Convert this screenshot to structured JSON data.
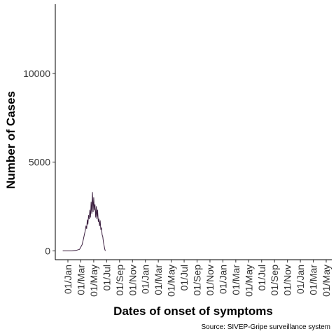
{
  "chart_data": {
    "type": "line",
    "title": "",
    "xlabel": "Dates of onset of symptoms",
    "ylabel": "Number of Cases",
    "caption": "Source: SIVEP-Gripe surveillance system",
    "ylim": [
      -500,
      13900
    ],
    "y_ticks": [
      0,
      5000,
      10000
    ],
    "y_tick_labels": [
      "0",
      "5000",
      "10000"
    ],
    "x_ticks": [
      "01/Jan",
      "01/Mar",
      "01/May",
      "01/Jul",
      "01/Sep",
      "01/Nov",
      "01/Jan",
      "01/Mar",
      "01/May",
      "01/Jul",
      "01/Sep",
      "01/Nov",
      "01/Jan",
      "01/Mar",
      "01/May",
      "01/Jul",
      "01/Sep",
      "01/Nov",
      "01/Jan",
      "01/Mar",
      "01/May"
    ],
    "grid": false,
    "series": [
      {
        "name": "Cases",
        "color": "#3b1f3f",
        "x": [
          -0.4,
          0.0,
          0.3,
          0.6,
          0.9,
          1.1,
          1.2,
          1.3,
          1.35,
          1.4,
          1.45,
          1.5,
          1.55,
          1.6,
          1.65,
          1.7,
          1.75,
          1.8,
          1.85,
          1.9,
          1.95,
          2.0,
          2.05,
          2.1,
          2.15,
          2.2,
          2.25,
          2.3,
          2.35,
          2.4,
          2.45,
          2.5,
          2.55,
          2.6,
          2.65,
          2.7,
          2.75,
          2.8,
          2.85,
          2.9
        ],
        "values": [
          0,
          0,
          0,
          20,
          80,
          350,
          650,
          1000,
          1150,
          1400,
          1250,
          1750,
          1500,
          2000,
          1800,
          2300,
          1900,
          2750,
          2100,
          3300,
          2200,
          3000,
          2300,
          2600,
          1900,
          2500,
          1800,
          2300,
          1650,
          1800,
          1400,
          1700,
          1200,
          1300,
          900,
          800,
          500,
          300,
          100,
          0
        ]
      }
    ]
  }
}
